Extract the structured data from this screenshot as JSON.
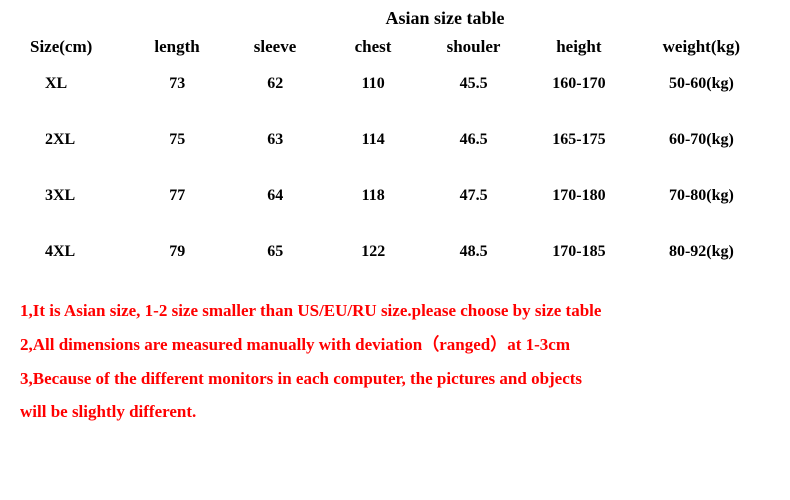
{
  "title": "Asian size table",
  "columns": [
    "Size(cm)",
    "length",
    "sleeve",
    "chest",
    "shouler",
    "height",
    "weight(kg)"
  ],
  "rows": [
    [
      "XL",
      "73",
      "62",
      "110",
      "45.5",
      "160-170",
      "50-60(kg)"
    ],
    [
      "2XL",
      "75",
      "63",
      "114",
      "46.5",
      "165-175",
      "60-70(kg)"
    ],
    [
      "3XL",
      "77",
      "64",
      "118",
      "47.5",
      "170-180",
      "70-80(kg)"
    ],
    [
      "4XL",
      "79",
      "65",
      "122",
      "48.5",
      "170-185",
      "80-92(kg)"
    ]
  ],
  "notes": [
    "1,It is Asian size, 1-2 size smaller than US/EU/RU size.please choose by size table",
    "2,All dimensions are measured manually with deviation（ranged）at 1-3cm",
    "3,Because of the different monitors in each computer, the pictures and objects",
    "will be slightly different."
  ],
  "colors": {
    "text": "#000000",
    "note_text": "#ff0000",
    "background": "#ffffff"
  },
  "typography": {
    "title_fontsize": 18,
    "header_fontsize": 17,
    "data_fontsize": 16,
    "note_fontsize": 17,
    "font_family": "Georgia, serif",
    "font_weight": "bold"
  }
}
